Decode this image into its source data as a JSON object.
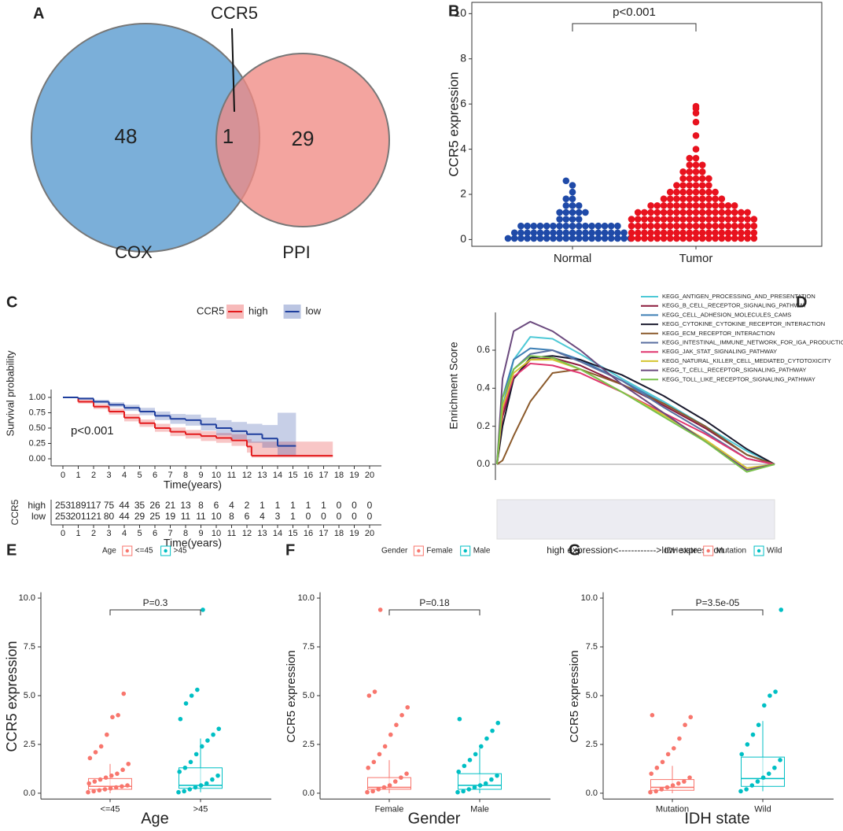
{
  "chart_data": [
    {
      "type": "venn",
      "panel": "A",
      "annotation": "CCR5",
      "sets": [
        {
          "name": "COX",
          "value": 48,
          "color": "#7bafd9"
        },
        {
          "name": "PPI",
          "value": 29,
          "color": "#f08a84"
        }
      ],
      "overlap": 1
    },
    {
      "type": "beeswarm",
      "panel": "B",
      "ylabel": "CCR5 expression",
      "annotation": "p<0.001",
      "categories": [
        "Normal",
        "Tumor"
      ],
      "colors": [
        "#1f4aa8",
        "#e8121e"
      ],
      "ylim": [
        -0.3,
        10.5
      ],
      "yticks": [
        0,
        2,
        4,
        6,
        8,
        10
      ],
      "values": [
        [
          0.05,
          0.05,
          0.05,
          0.05,
          0.05,
          0.05,
          0.05,
          0.05,
          0.05,
          0.05,
          0.05,
          0.05,
          0.05,
          0.05,
          0.05,
          0.05,
          0.05,
          0.05,
          0.05,
          0.05,
          0.3,
          0.3,
          0.3,
          0.3,
          0.3,
          0.3,
          0.3,
          0.3,
          0.3,
          0.3,
          0.3,
          0.3,
          0.3,
          0.3,
          0.3,
          0.3,
          0.3,
          0.3,
          0.6,
          0.6,
          0.6,
          0.6,
          0.6,
          0.6,
          0.6,
          0.6,
          0.6,
          0.6,
          0.6,
          0.6,
          0.6,
          0.6,
          0.6,
          0.6,
          0.9,
          0.9,
          0.9,
          0.9,
          1.2,
          1.2,
          1.2,
          1.2,
          1.2,
          1.5,
          1.5,
          1.5,
          1.8,
          1.8,
          2.1,
          2.4,
          2.6
        ],
        [
          0.05,
          0.05,
          0.05,
          0.05,
          0.05,
          0.05,
          0.05,
          0.05,
          0.05,
          0.05,
          0.05,
          0.05,
          0.05,
          0.05,
          0.05,
          0.05,
          0.05,
          0.05,
          0.05,
          0.05,
          0.3,
          0.3,
          0.3,
          0.3,
          0.3,
          0.3,
          0.3,
          0.3,
          0.3,
          0.3,
          0.3,
          0.3,
          0.3,
          0.3,
          0.3,
          0.3,
          0.3,
          0.3,
          0.3,
          0.3,
          0.6,
          0.6,
          0.6,
          0.6,
          0.6,
          0.6,
          0.6,
          0.6,
          0.6,
          0.6,
          0.6,
          0.6,
          0.6,
          0.6,
          0.6,
          0.6,
          0.6,
          0.6,
          0.6,
          0.6,
          0.9,
          0.9,
          0.9,
          0.9,
          0.9,
          0.9,
          0.9,
          0.9,
          0.9,
          0.9,
          0.9,
          0.9,
          0.9,
          0.9,
          0.9,
          0.9,
          0.9,
          0.9,
          0.9,
          0.9,
          1.2,
          1.2,
          1.2,
          1.2,
          1.2,
          1.2,
          1.2,
          1.2,
          1.2,
          1.2,
          1.2,
          1.2,
          1.2,
          1.2,
          1.2,
          1.2,
          1.2,
          1.2,
          1.5,
          1.5,
          1.5,
          1.5,
          1.5,
          1.5,
          1.5,
          1.5,
          1.5,
          1.5,
          1.5,
          1.5,
          1.5,
          1.5,
          1.8,
          1.8,
          1.8,
          1.8,
          1.8,
          1.8,
          1.8,
          1.8,
          1.8,
          1.8,
          2.1,
          2.1,
          2.1,
          2.1,
          2.1,
          2.1,
          2.1,
          2.1,
          2.4,
          2.4,
          2.4,
          2.4,
          2.4,
          2.4,
          2.7,
          2.7,
          2.7,
          2.7,
          2.7,
          3.0,
          3.0,
          3.0,
          3.0,
          3.3,
          3.3,
          3.3,
          3.6,
          3.6,
          4.0,
          4.6,
          5.2,
          5.6,
          5.8,
          5.9
        ]
      ]
    },
    {
      "type": "survival",
      "panel": "C",
      "legend_title": "CCR5",
      "xlabel": "Time(years)",
      "ylabel": "Survival probability",
      "annotation": "p<0.001",
      "xlim": [
        -0.5,
        20.5
      ],
      "xticks": [
        0,
        1,
        2,
        3,
        4,
        5,
        6,
        7,
        8,
        9,
        10,
        11,
        12,
        13,
        14,
        15,
        16,
        17,
        18,
        19,
        20
      ],
      "ylim": [
        -0.05,
        1.05
      ],
      "yticks": [
        {
          "value": 0,
          "label": "0.00"
        },
        {
          "value": 0.25,
          "label": "0.25"
        },
        {
          "value": 0.5,
          "label": "0.50"
        },
        {
          "value": 0.75,
          "label": "0.75"
        },
        {
          "value": 1,
          "label": "1.00"
        }
      ],
      "series": [
        {
          "name": "high",
          "color": "#e31a1c",
          "x": [
            0,
            1,
            2,
            3,
            4,
            5,
            6,
            7,
            8,
            9,
            10,
            11,
            12,
            12.3,
            17.6
          ],
          "values": [
            1,
            0.93,
            0.85,
            0.77,
            0.67,
            0.58,
            0.5,
            0.44,
            0.4,
            0.37,
            0.34,
            0.3,
            0.2,
            0.05,
            0.05
          ],
          "lower": [
            1,
            0.9,
            0.81,
            0.72,
            0.61,
            0.52,
            0.44,
            0.37,
            0.33,
            0.29,
            0.26,
            0.21,
            0.1,
            0.02,
            0.02
          ],
          "upper": [
            1,
            0.96,
            0.89,
            0.82,
            0.73,
            0.64,
            0.57,
            0.51,
            0.47,
            0.45,
            0.42,
            0.4,
            0.32,
            0.28,
            0.28
          ]
        },
        {
          "name": "low",
          "color": "#1f3f9e",
          "x": [
            0,
            1,
            2,
            3,
            4,
            5,
            6,
            7,
            8,
            9,
            10,
            11,
            12,
            13,
            14,
            15.2
          ],
          "values": [
            1,
            0.98,
            0.93,
            0.88,
            0.83,
            0.77,
            0.7,
            0.65,
            0.63,
            0.56,
            0.5,
            0.45,
            0.4,
            0.33,
            0.21,
            0.21
          ],
          "lower": [
            1,
            0.96,
            0.9,
            0.84,
            0.78,
            0.71,
            0.63,
            0.57,
            0.54,
            0.46,
            0.38,
            0.32,
            0.26,
            0.18,
            0.05,
            0.05
          ],
          "upper": [
            1,
            1,
            0.96,
            0.92,
            0.88,
            0.83,
            0.77,
            0.73,
            0.72,
            0.67,
            0.63,
            0.6,
            0.57,
            0.55,
            0.75,
            0.75
          ]
        }
      ],
      "risk_table": {
        "title": "CCR5",
        "xlabel": "Time(years)",
        "rows": [
          {
            "name": "high",
            "color": "#e31a1c",
            "values": [
              253,
              189,
              117,
              75,
              44,
              35,
              26,
              21,
              13,
              8,
              6,
              4,
              2,
              1,
              1,
              1,
              1,
              1,
              0,
              0,
              0
            ]
          },
          {
            "name": "low",
            "color": "#1f3f9e",
            "values": [
              253,
              201,
              121,
              80,
              44,
              29,
              25,
              19,
              11,
              11,
              10,
              8,
              6,
              4,
              3,
              1,
              0,
              0,
              0,
              0,
              0
            ]
          }
        ]
      }
    },
    {
      "type": "gsea",
      "panel": "D",
      "ylabel": "Enrichment Score",
      "xlabel": "high expression<------------>low expression",
      "xlim": [
        0,
        1
      ],
      "ylim": [
        -0.07,
        0.8
      ],
      "yticks": [
        {
          "value": 0,
          "label": "0.0"
        },
        {
          "value": 0.2,
          "label": "0.2"
        },
        {
          "value": 0.4,
          "label": "0.4"
        },
        {
          "value": 0.6,
          "label": "0.6"
        }
      ],
      "x": [
        0,
        0.02,
        0.06,
        0.12,
        0.2,
        0.3,
        0.45,
        0.6,
        0.75,
        0.9,
        1
      ],
      "series": [
        {
          "name": "KEGG_ANTIGEN_PROCESSING_AND_PRESENTATION",
          "color": "#4ec9d6",
          "values": [
            0,
            0.3,
            0.55,
            0.67,
            0.66,
            0.58,
            0.45,
            0.33,
            0.2,
            0.07,
            0
          ]
        },
        {
          "name": "KEGG_B_CELL_RECEPTOR_SIGNALING_PATHWAY",
          "color": "#8b1a3c",
          "values": [
            0,
            0.25,
            0.45,
            0.55,
            0.56,
            0.52,
            0.42,
            0.31,
            0.19,
            0.05,
            0
          ]
        },
        {
          "name": "KEGG_CELL_ADHESION_MOLECULES_CAMS",
          "color": "#3d7fb5",
          "values": [
            0,
            0.35,
            0.55,
            0.61,
            0.6,
            0.55,
            0.44,
            0.32,
            0.2,
            0.05,
            0
          ]
        },
        {
          "name": "KEGG_CYTOKINE_CYTOKINE_RECEPTOR_INTERACTION",
          "color": "#1a1a2e",
          "values": [
            0,
            0.2,
            0.45,
            0.56,
            0.57,
            0.55,
            0.47,
            0.36,
            0.23,
            0.08,
            0
          ]
        },
        {
          "name": "KEGG_ECM_RECEPTOR_INTERACTION",
          "color": "#8b5a2b",
          "values": [
            0,
            0.02,
            0.15,
            0.33,
            0.48,
            0.5,
            0.42,
            0.32,
            0.2,
            0.05,
            0
          ]
        },
        {
          "name": "KEGG_INTESTINAL_IMMUNE_NETWORK_FOR_IGA_PRODUCTION",
          "color": "#5a6fa0",
          "values": [
            0,
            0.3,
            0.5,
            0.58,
            0.6,
            0.54,
            0.44,
            0.3,
            0.17,
            0.03,
            0
          ]
        },
        {
          "name": "KEGG_JAK_STAT_SIGNALING_PATHWAY",
          "color": "#e0356f",
          "values": [
            0,
            0.28,
            0.46,
            0.53,
            0.52,
            0.48,
            0.38,
            0.27,
            0.16,
            0.03,
            0
          ]
        },
        {
          "name": "KEGG_NATURAL_KILLER_CELL_MEDIATED_CYTOTOXICITY",
          "color": "#d5c531",
          "values": [
            0,
            0.3,
            0.48,
            0.55,
            0.55,
            0.5,
            0.38,
            0.26,
            0.13,
            -0.02,
            0
          ]
        },
        {
          "name": "KEGG_T_CELL_RECEPTOR_SIGNALING_PATHWAY",
          "color": "#6b4a7e",
          "values": [
            0,
            0.45,
            0.7,
            0.75,
            0.7,
            0.6,
            0.42,
            0.27,
            0.12,
            -0.03,
            0
          ]
        },
        {
          "name": "KEGG_TOLL_LIKE_RECEPTOR_SIGNALING_PATHWAY",
          "color": "#79c14b",
          "values": [
            0,
            0.35,
            0.5,
            0.57,
            0.56,
            0.5,
            0.38,
            0.25,
            0.12,
            -0.04,
            0
          ]
        }
      ]
    },
    {
      "type": "boxplot",
      "panel": "E",
      "legend_title": "Age",
      "categories": [
        "<=45",
        ">45"
      ],
      "colors": [
        "#f8766d",
        "#00bfc4"
      ],
      "xlabel": "Age",
      "ylabel": "CCR5 expression",
      "annotation": "P=0.3",
      "ylim": [
        -0.3,
        10.3
      ],
      "yticks": [
        {
          "value": 0,
          "label": "0.0"
        },
        {
          "value": 2.5,
          "label": "2.5"
        },
        {
          "value": 5,
          "label": "5.0"
        },
        {
          "value": 7.5,
          "label": "7.5"
        },
        {
          "value": 10,
          "label": "10.0"
        }
      ],
      "boxes": [
        {
          "min": 0,
          "q1": 0.2,
          "median": 0.35,
          "q3": 0.75,
          "max": 1.5
        },
        {
          "min": 0.05,
          "q1": 0.25,
          "median": 0.4,
          "q3": 1.3,
          "max": 2.8
        }
      ],
      "points": [
        [
          0.05,
          0.1,
          0.15,
          0.2,
          0.25,
          0.3,
          0.35,
          0.4,
          0.5,
          0.6,
          0.7,
          0.8,
          0.9,
          1.0,
          1.2,
          1.5,
          1.8,
          2.1,
          2.4,
          3.0,
          3.9,
          4.0,
          5.1
        ],
        [
          0.05,
          0.1,
          0.2,
          0.3,
          0.4,
          0.5,
          0.7,
          0.9,
          1.1,
          1.3,
          1.6,
          2.0,
          2.4,
          2.7,
          3.0,
          3.3,
          3.8,
          4.6,
          5.0,
          5.3,
          9.4
        ]
      ]
    },
    {
      "type": "boxplot",
      "panel": "F",
      "legend_title": "Gender",
      "categories": [
        "Female",
        "Male"
      ],
      "colors": [
        "#f8766d",
        "#00bfc4"
      ],
      "xlabel": "Gender",
      "ylabel": "CCR5 expression",
      "annotation": "P=0.18",
      "ylim": [
        -0.3,
        10.3
      ],
      "yticks": [
        {
          "value": 0,
          "label": "0.0"
        },
        {
          "value": 2.5,
          "label": "2.5"
        },
        {
          "value": 5,
          "label": "5.0"
        },
        {
          "value": 7.5,
          "label": "7.5"
        },
        {
          "value": 10,
          "label": "10.0"
        }
      ],
      "boxes": [
        {
          "min": 0,
          "q1": 0.2,
          "median": 0.3,
          "q3": 0.8,
          "max": 1.7
        },
        {
          "min": 0,
          "q1": 0.2,
          "median": 0.4,
          "q3": 1.0,
          "max": 2.3
        }
      ],
      "points": [
        [
          0.05,
          0.1,
          0.2,
          0.3,
          0.4,
          0.6,
          0.8,
          1.0,
          1.3,
          1.6,
          2.0,
          2.4,
          3.0,
          3.5,
          4.0,
          4.4,
          5.0,
          5.2,
          9.4
        ],
        [
          0.05,
          0.1,
          0.2,
          0.3,
          0.4,
          0.5,
          0.7,
          0.9,
          1.1,
          1.4,
          1.7,
          2.0,
          2.4,
          2.8,
          3.2,
          3.6,
          3.8
        ]
      ]
    },
    {
      "type": "boxplot",
      "panel": "G",
      "legend_title": "IDH state",
      "categories": [
        "Mutation",
        "Wild"
      ],
      "colors": [
        "#f8766d",
        "#00bfc4"
      ],
      "xlabel": "IDH state",
      "ylabel": "CCR5 expression",
      "annotation": "P=3.5e-05",
      "ylim": [
        -0.3,
        10.3
      ],
      "yticks": [
        {
          "value": 0,
          "label": "0.0"
        },
        {
          "value": 2.5,
          "label": "2.5"
        },
        {
          "value": 5,
          "label": "5.0"
        },
        {
          "value": 7.5,
          "label": "7.5"
        },
        {
          "value": 10,
          "label": "10.0"
        }
      ],
      "boxes": [
        {
          "min": 0,
          "q1": 0.15,
          "median": 0.3,
          "q3": 0.7,
          "max": 1.4
        },
        {
          "min": 0.1,
          "q1": 0.35,
          "median": 0.75,
          "q3": 1.85,
          "max": 3.7
        }
      ],
      "points": [
        [
          0.05,
          0.1,
          0.2,
          0.3,
          0.4,
          0.5,
          0.6,
          0.8,
          1.0,
          1.3,
          1.6,
          2.0,
          2.3,
          2.8,
          3.5,
          3.9,
          4.0
        ],
        [
          0.1,
          0.2,
          0.4,
          0.6,
          0.8,
          1.0,
          1.3,
          1.7,
          2.0,
          2.5,
          3.0,
          3.5,
          4.5,
          5.0,
          5.2,
          9.4
        ]
      ]
    }
  ]
}
